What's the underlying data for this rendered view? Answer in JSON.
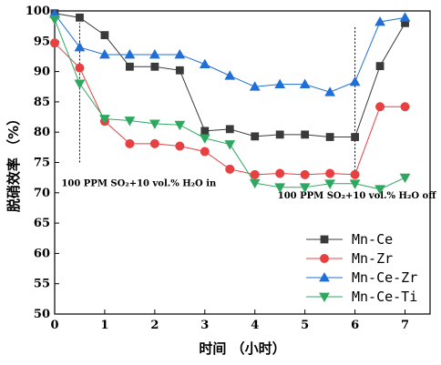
{
  "chart_data": {
    "type": "line",
    "xlabel": "时间 （小时）",
    "ylabel": "脱硝效率 （%）",
    "xlim": [
      0,
      7.5
    ],
    "ylim": [
      50,
      100
    ],
    "xticks": [
      0,
      1,
      2,
      3,
      4,
      5,
      6,
      7
    ],
    "yticks": [
      50,
      55,
      60,
      65,
      70,
      75,
      80,
      85,
      90,
      95,
      100
    ],
    "grid": false,
    "legend_position": "bottom-right",
    "x": [
      0,
      0.5,
      1,
      1.5,
      2,
      2.5,
      3,
      3.5,
      4,
      4.5,
      5,
      5.5,
      6,
      6.5,
      7
    ],
    "series": [
      {
        "name": "Mn-Ce",
        "color": "#3a3a3a",
        "marker": "square",
        "values": [
          99.6,
          98.9,
          96.0,
          90.8,
          90.8,
          90.2,
          80.2,
          80.5,
          79.3,
          79.6,
          79.6,
          79.2,
          79.2,
          90.9,
          98.0
        ]
      },
      {
        "name": "Mn-Zr",
        "color": "#e84040",
        "marker": "circle",
        "values": [
          94.7,
          90.6,
          81.8,
          78.1,
          78.1,
          77.7,
          76.8,
          73.9,
          73.0,
          73.2,
          73.0,
          73.2,
          73.0,
          84.2,
          84.2
        ]
      },
      {
        "name": "Mn-Ce-Zr",
        "color": "#1f6fd6",
        "marker": "triangle-up",
        "values": [
          99.5,
          94.0,
          92.8,
          92.8,
          92.8,
          92.8,
          91.2,
          89.3,
          87.5,
          87.9,
          87.9,
          86.6,
          88.3,
          98.2,
          98.9
        ]
      },
      {
        "name": "Mn-Ce-Ti",
        "color": "#2ea860",
        "marker": "triangle-down",
        "values": [
          98.6,
          88.0,
          82.2,
          81.9,
          81.4,
          81.2,
          79.0,
          78.0,
          71.6,
          70.9,
          70.9,
          71.5,
          71.5,
          70.6,
          72.5
        ]
      }
    ],
    "annotations": [
      {
        "text": "100 PPM SO₂+10 vol.% H₂O in",
        "x": 0.5,
        "line_y": [
          75,
          98
        ]
      },
      {
        "text": "100 PPM SO₂+10 vol.% H₂O off",
        "x": 6,
        "line_y": [
          73,
          97.5
        ]
      }
    ]
  }
}
